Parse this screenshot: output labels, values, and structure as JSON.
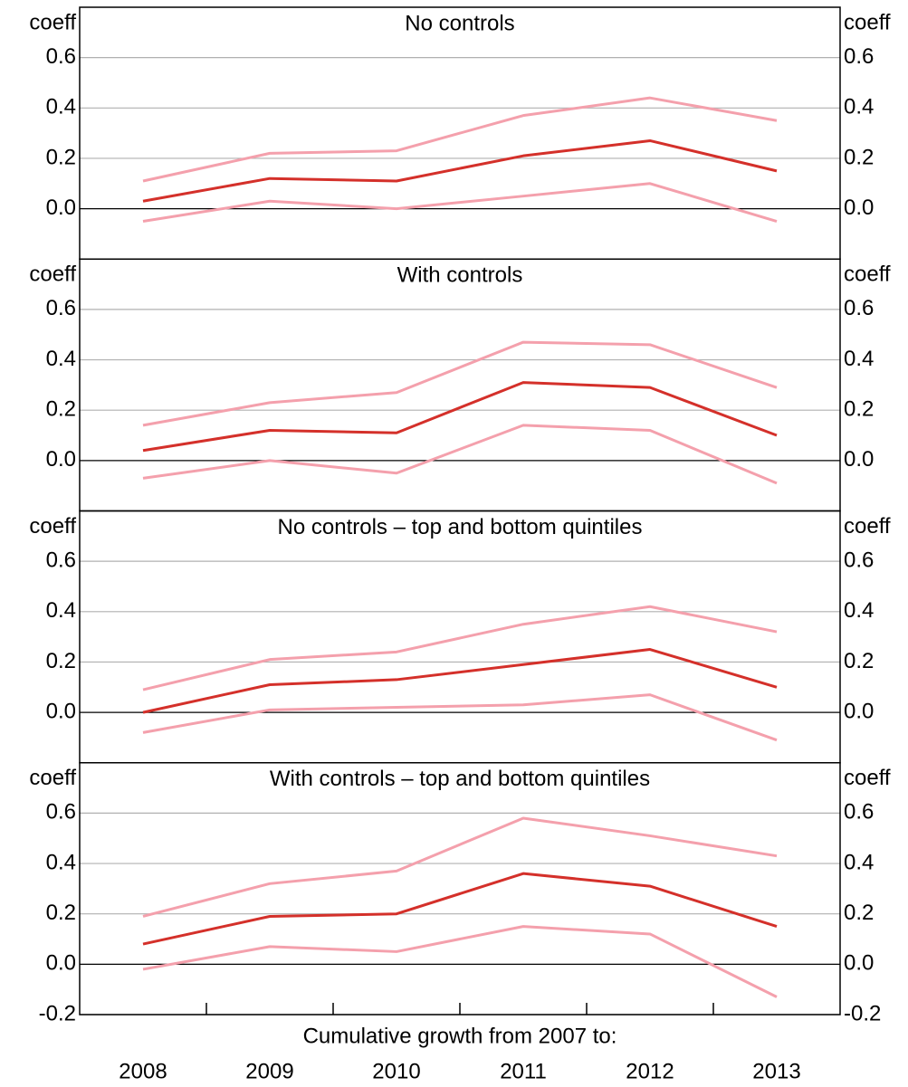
{
  "chart_data": [
    {
      "type": "line",
      "title": "No controls",
      "y_unit": "coeff",
      "ylim": [
        -0.2,
        0.8
      ],
      "yticks": [
        {
          "value": 0,
          "label": "0.0"
        },
        0.2,
        0.4,
        0.6
      ],
      "grid": true,
      "series": [
        {
          "color": "#f4a0ac",
          "values": [
            0.11,
            0.22,
            0.23,
            0.37,
            0.44,
            0.35
          ]
        },
        {
          "color": "#d4302a",
          "values": [
            0.03,
            0.12,
            0.11,
            0.21,
            0.27,
            0.15
          ]
        },
        {
          "color": "#f4a0ac",
          "values": [
            -0.05,
            0.03,
            0.0,
            0.05,
            0.1,
            -0.05
          ]
        }
      ]
    },
    {
      "type": "line",
      "title": "With controls",
      "y_unit": "coeff",
      "ylim": [
        -0.2,
        0.8
      ],
      "yticks": [
        {
          "value": 0,
          "label": "0.0"
        },
        0.2,
        0.4,
        0.6
      ],
      "grid": true,
      "series": [
        {
          "color": "#f4a0ac",
          "values": [
            0.14,
            0.23,
            0.27,
            0.47,
            0.46,
            0.29
          ]
        },
        {
          "color": "#d4302a",
          "values": [
            0.04,
            0.12,
            0.11,
            0.31,
            0.29,
            0.1
          ]
        },
        {
          "color": "#f4a0ac",
          "values": [
            -0.07,
            0.0,
            -0.05,
            0.14,
            0.12,
            -0.09
          ]
        }
      ]
    },
    {
      "type": "line",
      "title": "No controls – top and bottom quintiles",
      "y_unit": "coeff",
      "ylim": [
        -0.2,
        0.8
      ],
      "yticks": [
        {
          "value": 0,
          "label": "0.0"
        },
        0.2,
        0.4,
        0.6
      ],
      "grid": true,
      "series": [
        {
          "color": "#f4a0ac",
          "values": [
            0.09,
            0.21,
            0.24,
            0.35,
            0.42,
            0.32
          ]
        },
        {
          "color": "#d4302a",
          "values": [
            0.0,
            0.11,
            0.13,
            0.19,
            0.25,
            0.1
          ]
        },
        {
          "color": "#f4a0ac",
          "values": [
            -0.08,
            0.01,
            0.02,
            0.03,
            0.07,
            -0.11
          ]
        }
      ]
    },
    {
      "type": "line",
      "title": "With controls – top and bottom quintiles",
      "y_unit": "coeff",
      "xlabel": "Cumulative growth from 2007 to:",
      "categories": [
        "2008",
        "2009",
        "2010",
        "2011",
        "2012",
        "2013"
      ],
      "ylim": [
        -0.2,
        0.8
      ],
      "yticks": [
        -0.2,
        {
          "value": 0,
          "label": "0.0"
        },
        0.2,
        0.4,
        0.6
      ],
      "grid": true,
      "series": [
        {
          "color": "#f4a0ac",
          "values": [
            0.19,
            0.32,
            0.37,
            0.58,
            0.51,
            0.43
          ]
        },
        {
          "color": "#d4302a",
          "values": [
            0.08,
            0.19,
            0.2,
            0.36,
            0.31,
            0.15
          ]
        },
        {
          "color": "#f4a0ac",
          "values": [
            -0.02,
            0.07,
            0.05,
            0.15,
            0.12,
            -0.13
          ]
        }
      ]
    }
  ]
}
